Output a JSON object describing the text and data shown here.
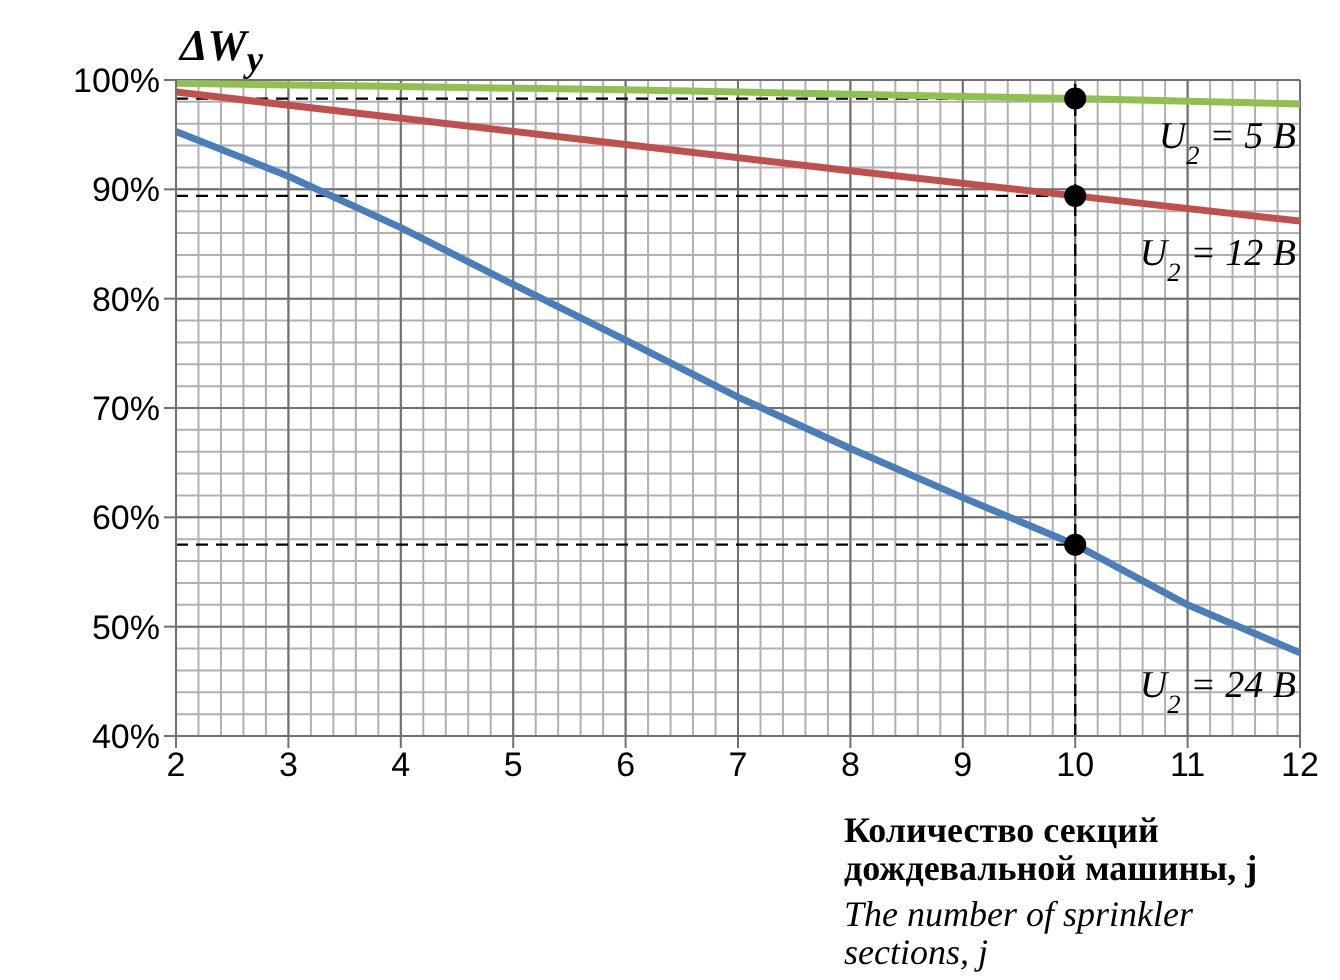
{
  "chart_data": {
    "type": "line",
    "ylabel": "ΔW$_{у}$",
    "xlabel": "Количество секций дождевальной машины, j",
    "xlim": [
      2,
      12
    ],
    "xticks": [
      2,
      3,
      4,
      5,
      6,
      7,
      8,
      9,
      10,
      11,
      12
    ],
    "ylim": [
      40,
      100
    ],
    "yticks": [
      {
        "value": 40,
        "label": "40%"
      },
      {
        "value": 50,
        "label": "50%"
      },
      {
        "value": 60,
        "label": "60%"
      },
      {
        "value": 70,
        "label": "70%"
      },
      {
        "value": 80,
        "label": "80%"
      },
      {
        "value": 90,
        "label": "90%"
      },
      {
        "value": 100,
        "label": "100%"
      }
    ],
    "grid": true,
    "legend": false,
    "marker": "none",
    "line_style": "solid",
    "series": [
      {
        "name": "U$_{2}$ = 5 В",
        "color": "#92c050",
        "x": [
          2,
          4,
          6,
          8,
          10,
          12
        ],
        "values": [
          99.7,
          99.4,
          99.1,
          98.7,
          98.3,
          97.8
        ]
      },
      {
        "name": "U$_{2}$ = 12 В",
        "color": "#c0504d",
        "x": [
          2,
          4,
          6,
          8,
          10,
          12
        ],
        "values": [
          98.9,
          96.5,
          94.1,
          91.7,
          89.4,
          87.1
        ]
      },
      {
        "name": "U$_{2}$ = 24 В",
        "color": "#4a7ebb",
        "x": [
          2,
          3,
          4,
          5,
          6,
          7,
          8,
          9,
          10,
          11,
          12
        ],
        "values": [
          95.3,
          91.2,
          86.5,
          81.3,
          76.2,
          71,
          66.3,
          61.8,
          57.5,
          52,
          47.6
        ]
      },
      {
        "type": "scatter",
        "marker": "circle",
        "color": "#000000",
        "x": [
          10,
          10,
          10
        ],
        "values": [
          98.3,
          89.4,
          57.5
        ]
      }
    ],
    "ref_lines": [
      {
        "axis": "x",
        "value": 10,
        "line_style": "dashed",
        "color": "#000000"
      },
      {
        "axis": "y",
        "value": 98.3,
        "line_style": "dashed",
        "color": "#000000"
      },
      {
        "axis": "y",
        "value": 89.4,
        "line_style": "dashed",
        "color": "#000000"
      },
      {
        "axis": "y",
        "value": 57.5,
        "line_style": "dashed",
        "color": "#000000"
      }
    ],
    "annotations": [
      "The number of sprinkler sections, j"
    ]
  }
}
